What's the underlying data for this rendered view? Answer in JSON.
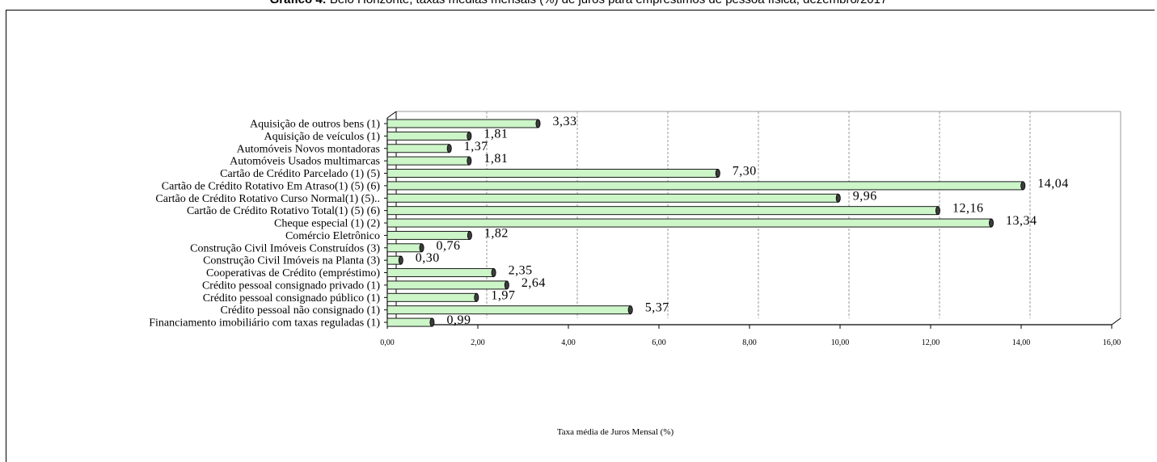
{
  "page": {
    "title_prefix": "Gráfico 4:",
    "title_rest": " Belo Horizonte, taxas médias mensais (%) de juros para empréstimos de pessoa física, dezembro/2017"
  },
  "chart_data": {
    "type": "bar",
    "orientation": "horizontal",
    "categories": [
      "Aquisição de outros bens (1)",
      "Aquisição de veículos (1)",
      "Automóveis Novos montadoras",
      "Automóveis Usados multimarcas",
      "Cartão de Crédito Parcelado (1) (5)",
      "Cartão de Crédito Rotativo Em Atraso(1) (5) (6)",
      "Cartão de Crédito Rotativo Curso Normal(1) (5)..",
      "Cartão de Crédito Rotativo Total(1) (5) (6)",
      "Cheque especial (1) (2)",
      "Comércio Eletrônico",
      "Construção Civil Imóveis Construídos (3)",
      "Construção Civil Imóveis na Planta (3)",
      "Cooperativas de Crédito (empréstimo)",
      "Crédito pessoal consignado privado (1)",
      "Crédito pessoal consignado público (1)",
      "Crédito pessoal não consignado (1)",
      "Financiamento imobiliário com taxas reguladas (1)"
    ],
    "values": [
      3.33,
      1.81,
      1.37,
      1.81,
      7.3,
      14.04,
      9.96,
      12.16,
      13.34,
      1.82,
      0.76,
      0.3,
      2.35,
      2.64,
      1.97,
      5.37,
      0.99
    ],
    "value_labels": [
      "3,33",
      "1,81",
      "1,37",
      "1,81",
      "7,30",
      "14,04",
      "9,96",
      "12,16",
      "13,34",
      "1,82",
      "0,76",
      "0,30",
      "2,35",
      "2,64",
      "1,97",
      "5,37",
      "0,99"
    ],
    "x_ticks": [
      0,
      2,
      4,
      6,
      8,
      10,
      12,
      14,
      16
    ],
    "x_tick_labels": [
      "0,00",
      "2,00",
      "4,00",
      "6,00",
      "8,00",
      "10,00",
      "12,00",
      "14,00",
      "16,00"
    ],
    "xlim": [
      0,
      16
    ],
    "xlabel": "Taxa média de Juros Mensal (%)",
    "ylabel": "",
    "grid": "vertical-dashed",
    "colors": {
      "bar_fill": "#ccf5c8",
      "bar_cap": "#3c3c3c",
      "grid": "#9a9a9a"
    }
  }
}
